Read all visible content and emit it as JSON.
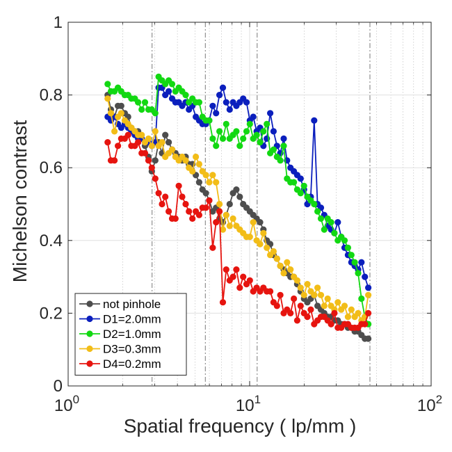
{
  "chart_data": {
    "type": "line",
    "title": "",
    "xlabel": "Spatial frequency ( lp/mm )",
    "ylabel": "Michelson contrast",
    "xscale": "log",
    "xlim": [
      1,
      100
    ],
    "ylim": [
      0,
      1
    ],
    "x_ticks": [
      {
        "value": 1,
        "base": "10",
        "exp": "0"
      },
      {
        "value": 10,
        "base": "10",
        "exp": "1"
      },
      {
        "value": 100,
        "base": "10",
        "exp": "2"
      }
    ],
    "y_ticks": [
      {
        "value": 0,
        "label": "0"
      },
      {
        "value": 0.2,
        "label": "0.2"
      },
      {
        "value": 0.4,
        "label": "0.4"
      },
      {
        "value": 0.6,
        "label": "0.6"
      },
      {
        "value": 0.8,
        "label": "0.8"
      },
      {
        "value": 1,
        "label": "1"
      }
    ],
    "grid": true,
    "vertical_reference_lines": [
      2.9,
      5.7,
      11.0,
      46.0
    ],
    "legend_position": "bottom-left",
    "series": [
      {
        "name": "not pinhole",
        "color": "#4d4d4d",
        "x": [
          1.65,
          1.72,
          1.8,
          1.88,
          1.96,
          2.05,
          2.14,
          2.23,
          2.33,
          2.43,
          2.54,
          2.65,
          2.77,
          2.89,
          3.02,
          3.15,
          3.29,
          3.43,
          3.58,
          3.74,
          3.9,
          4.07,
          4.25,
          4.44,
          4.63,
          4.84,
          5.05,
          5.27,
          5.5,
          5.74,
          5.99,
          6.26,
          6.53,
          6.82,
          7.12,
          7.43,
          7.76,
          8.1,
          8.45,
          8.82,
          9.21,
          9.61,
          10.03,
          10.47,
          10.93,
          11.41,
          11.91,
          12.43,
          12.98,
          13.55,
          14.14,
          14.76,
          15.41,
          16.08,
          16.79,
          17.52,
          18.29,
          19.09,
          19.93,
          20.8,
          21.72,
          22.67,
          23.66,
          24.7,
          25.78,
          26.91,
          28.09,
          29.32,
          30.61,
          31.95,
          33.35,
          34.81,
          36.34,
          37.93,
          39.6,
          41.33,
          43.14,
          45.03
        ],
        "y": [
          0.8,
          0.76,
          0.74,
          0.77,
          0.77,
          0.75,
          0.74,
          0.71,
          0.7,
          0.7,
          0.68,
          0.66,
          0.63,
          0.59,
          0.62,
          0.67,
          0.64,
          0.69,
          0.67,
          0.65,
          0.64,
          0.63,
          0.62,
          0.63,
          0.61,
          0.61,
          0.58,
          0.56,
          0.54,
          0.53,
          0.51,
          0.48,
          0.49,
          0.46,
          0.45,
          0.47,
          0.5,
          0.53,
          0.54,
          0.52,
          0.5,
          0.49,
          0.48,
          0.47,
          0.46,
          0.45,
          0.43,
          0.4,
          0.39,
          0.36,
          0.35,
          0.33,
          0.32,
          0.31,
          0.3,
          0.3,
          0.28,
          0.26,
          0.24,
          0.23,
          0.24,
          0.25,
          0.22,
          0.21,
          0.2,
          0.19,
          0.19,
          0.18,
          0.18,
          0.17,
          0.17,
          0.16,
          0.16,
          0.15,
          0.15,
          0.14,
          0.13,
          0.13
        ]
      },
      {
        "name": "D1=2.0mm",
        "color": "#0b1fbd",
        "x": [
          1.65,
          1.72,
          1.8,
          1.88,
          1.96,
          2.05,
          2.14,
          2.23,
          2.33,
          2.43,
          2.54,
          2.65,
          2.77,
          2.89,
          3.02,
          3.15,
          3.29,
          3.43,
          3.58,
          3.74,
          3.9,
          4.07,
          4.25,
          4.44,
          4.63,
          4.84,
          5.05,
          5.27,
          5.5,
          5.74,
          5.99,
          6.26,
          6.53,
          6.82,
          7.12,
          7.43,
          7.76,
          8.1,
          8.45,
          8.82,
          9.21,
          9.61,
          10.03,
          10.47,
          10.93,
          11.41,
          11.91,
          12.43,
          12.98,
          13.55,
          14.14,
          14.76,
          15.41,
          16.08,
          16.79,
          17.52,
          18.29,
          19.09,
          19.93,
          20.8,
          21.72,
          22.67,
          23.66,
          24.7,
          25.78,
          26.91,
          28.09,
          29.32,
          30.61,
          31.95,
          33.35,
          34.81,
          36.34,
          37.93,
          39.6,
          41.33,
          43.14,
          45.03
        ],
        "y": [
          0.74,
          0.73,
          0.74,
          0.72,
          0.71,
          0.72,
          0.71,
          0.7,
          0.69,
          0.68,
          0.68,
          0.67,
          0.67,
          0.66,
          0.67,
          0.82,
          0.82,
          0.8,
          0.81,
          0.79,
          0.78,
          0.78,
          0.77,
          0.78,
          0.76,
          0.77,
          0.74,
          0.73,
          0.72,
          0.72,
          0.73,
          0.77,
          0.75,
          0.8,
          0.82,
          0.78,
          0.76,
          0.78,
          0.77,
          0.78,
          0.79,
          0.78,
          0.73,
          0.74,
          0.7,
          0.71,
          0.66,
          0.68,
          0.75,
          0.7,
          0.66,
          0.64,
          0.68,
          0.62,
          0.6,
          0.59,
          0.58,
          0.57,
          0.54,
          0.5,
          0.52,
          0.73,
          0.5,
          0.49,
          0.47,
          0.44,
          0.43,
          0.42,
          0.45,
          0.41,
          0.38,
          0.36,
          0.34,
          0.33,
          0.32,
          0.34,
          0.3,
          0.27
        ]
      },
      {
        "name": "D2=1.0mm",
        "color": "#12d812",
        "x": [
          1.65,
          1.72,
          1.8,
          1.88,
          1.96,
          2.05,
          2.14,
          2.23,
          2.33,
          2.43,
          2.54,
          2.65,
          2.77,
          2.89,
          3.02,
          3.15,
          3.29,
          3.43,
          3.58,
          3.74,
          3.9,
          4.07,
          4.25,
          4.44,
          4.63,
          4.84,
          5.05,
          5.27,
          5.5,
          5.74,
          5.99,
          6.26,
          6.53,
          6.82,
          7.12,
          7.43,
          7.76,
          8.1,
          8.45,
          8.82,
          9.21,
          9.61,
          10.03,
          10.47,
          10.93,
          11.41,
          11.91,
          12.43,
          12.98,
          13.55,
          14.14,
          14.76,
          15.41,
          16.08,
          16.79,
          17.52,
          18.29,
          19.09,
          19.93,
          20.8,
          21.72,
          22.67,
          23.66,
          24.7,
          25.78,
          26.91,
          28.09,
          29.32,
          30.61,
          31.95,
          33.35,
          34.81,
          36.34,
          37.93,
          39.6,
          41.33,
          43.14,
          45.03
        ],
        "y": [
          0.83,
          0.81,
          0.81,
          0.82,
          0.81,
          0.8,
          0.8,
          0.79,
          0.79,
          0.78,
          0.76,
          0.78,
          0.76,
          0.76,
          0.75,
          0.85,
          0.84,
          0.83,
          0.84,
          0.83,
          0.81,
          0.82,
          0.81,
          0.8,
          0.78,
          0.79,
          0.78,
          0.78,
          0.74,
          0.73,
          0.73,
          0.68,
          0.66,
          0.7,
          0.68,
          0.72,
          0.68,
          0.69,
          0.7,
          0.66,
          0.68,
          0.7,
          0.72,
          0.68,
          0.69,
          0.67,
          0.7,
          0.72,
          0.64,
          0.65,
          0.63,
          0.62,
          0.66,
          0.57,
          0.56,
          0.56,
          0.54,
          0.53,
          0.55,
          0.52,
          0.51,
          0.5,
          0.48,
          0.46,
          0.43,
          0.46,
          0.45,
          0.42,
          0.4,
          0.41,
          0.4,
          0.38,
          0.36,
          0.34,
          0.31,
          0.24,
          0.19,
          0.17
        ]
      },
      {
        "name": "D3=0.3mm",
        "color": "#f2bd18",
        "x": [
          1.65,
          1.72,
          1.8,
          1.88,
          1.96,
          2.05,
          2.14,
          2.23,
          2.33,
          2.43,
          2.54,
          2.65,
          2.77,
          2.89,
          3.02,
          3.15,
          3.29,
          3.43,
          3.58,
          3.74,
          3.9,
          4.07,
          4.25,
          4.44,
          4.63,
          4.84,
          5.05,
          5.27,
          5.5,
          5.74,
          5.99,
          6.26,
          6.53,
          6.82,
          7.12,
          7.43,
          7.76,
          8.1,
          8.45,
          8.82,
          9.21,
          9.61,
          10.03,
          10.47,
          10.93,
          11.41,
          11.91,
          12.43,
          12.98,
          13.55,
          14.14,
          14.76,
          15.41,
          16.08,
          16.79,
          17.52,
          18.29,
          19.09,
          19.93,
          20.8,
          21.72,
          22.67,
          23.66,
          24.7,
          25.78,
          26.91,
          28.09,
          29.32,
          30.61,
          31.95,
          33.35,
          34.81,
          36.34,
          37.93,
          39.6,
          41.33,
          43.14,
          45.03
        ],
        "y": [
          0.79,
          0.75,
          0.7,
          0.74,
          0.75,
          0.73,
          0.72,
          0.71,
          0.7,
          0.69,
          0.69,
          0.67,
          0.68,
          0.66,
          0.7,
          0.66,
          0.67,
          0.63,
          0.64,
          0.65,
          0.63,
          0.62,
          0.63,
          0.62,
          0.6,
          0.59,
          0.63,
          0.61,
          0.59,
          0.58,
          0.56,
          0.58,
          0.56,
          0.5,
          0.43,
          0.47,
          0.44,
          0.46,
          0.44,
          0.43,
          0.42,
          0.41,
          0.41,
          0.45,
          0.4,
          0.39,
          0.42,
          0.38,
          0.36,
          0.37,
          0.35,
          0.33,
          0.31,
          0.34,
          0.32,
          0.3,
          0.29,
          0.27,
          0.25,
          0.28,
          0.26,
          0.25,
          0.27,
          0.25,
          0.22,
          0.24,
          0.22,
          0.21,
          0.23,
          0.21,
          0.22,
          0.19,
          0.21,
          0.19,
          0.2,
          0.18,
          0.19,
          0.25
        ]
      },
      {
        "name": "D4=0.2mm",
        "color": "#e6140f",
        "x": [
          1.65,
          1.72,
          1.8,
          1.88,
          1.96,
          2.05,
          2.14,
          2.23,
          2.33,
          2.43,
          2.54,
          2.65,
          2.77,
          2.89,
          3.02,
          3.15,
          3.29,
          3.43,
          3.58,
          3.74,
          3.9,
          4.07,
          4.25,
          4.44,
          4.63,
          4.84,
          5.05,
          5.27,
          5.5,
          5.74,
          5.99,
          6.26,
          6.53,
          6.82,
          7.12,
          7.43,
          7.76,
          8.1,
          8.45,
          8.82,
          9.21,
          9.61,
          10.03,
          10.47,
          10.93,
          11.41,
          11.91,
          12.43,
          12.98,
          13.55,
          14.14,
          14.76,
          15.41,
          16.08,
          16.79,
          17.52,
          18.29,
          19.09,
          19.93,
          20.8,
          21.72,
          22.67,
          23.66,
          24.7,
          25.78,
          26.91,
          28.09,
          29.32,
          30.61,
          31.95,
          33.35,
          34.81,
          36.34,
          37.93,
          39.6,
          41.33,
          43.14,
          45.03
        ],
        "y": [
          0.67,
          0.62,
          0.62,
          0.66,
          0.68,
          0.68,
          0.69,
          0.66,
          0.66,
          0.67,
          0.64,
          0.64,
          0.62,
          0.6,
          0.57,
          0.53,
          0.5,
          0.52,
          0.48,
          0.46,
          0.46,
          0.55,
          0.52,
          0.5,
          0.48,
          0.46,
          0.48,
          0.47,
          0.49,
          0.49,
          0.51,
          0.38,
          0.45,
          0.48,
          0.23,
          0.32,
          0.29,
          0.3,
          0.32,
          0.27,
          0.3,
          0.28,
          0.29,
          0.26,
          0.27,
          0.26,
          0.27,
          0.26,
          0.26,
          0.23,
          0.22,
          0.25,
          0.2,
          0.21,
          0.2,
          0.24,
          0.18,
          0.22,
          0.2,
          0.19,
          0.21,
          0.17,
          0.18,
          0.19,
          0.19,
          0.18,
          0.17,
          0.2,
          0.16,
          0.16,
          0.17,
          0.17,
          0.16,
          0.16,
          0.16,
          0.17,
          0.17,
          0.2
        ]
      }
    ]
  }
}
